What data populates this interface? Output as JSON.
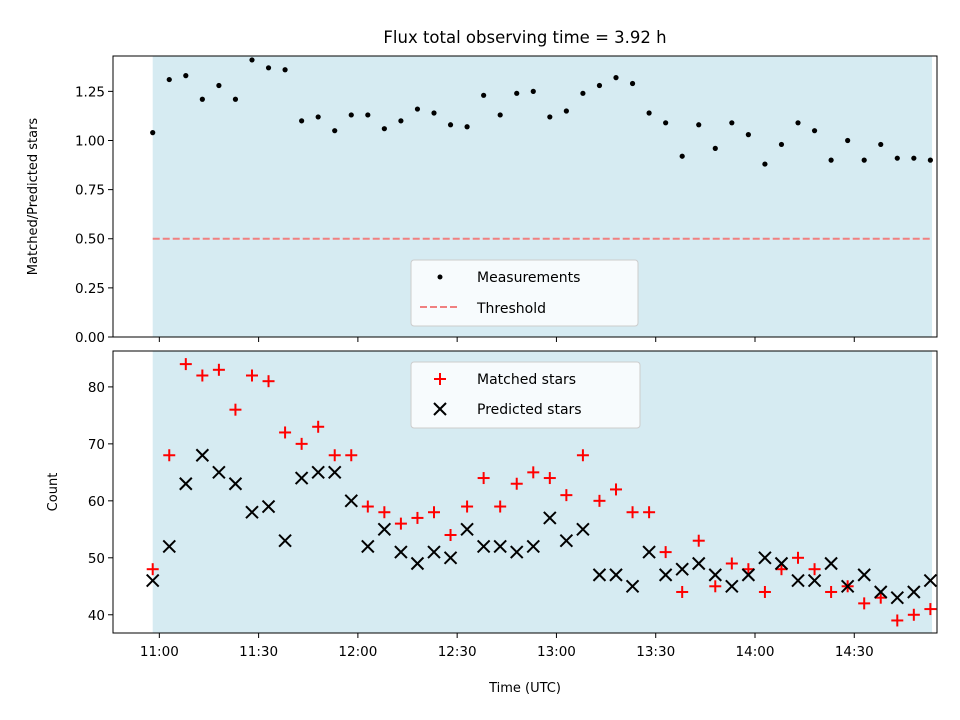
{
  "chart_data": [
    {
      "type": "scatter",
      "title": "Flux total observing time = 3.92 h",
      "xlabel": "",
      "ylabel": "Matched/Predicted stars",
      "xlim_minutes": [
        646,
        895
      ],
      "ylim": [
        0,
        1.43
      ],
      "yticks": [
        0.0,
        0.25,
        0.5,
        0.75,
        1.0,
        1.25
      ],
      "ytick_labels": [
        "0.00",
        "0.25",
        "0.50",
        "0.75",
        "1.00",
        "1.25"
      ],
      "shaded_span_minutes": [
        658,
        893.5
      ],
      "shade_color": "#add8e6",
      "legend": [
        "Measurements",
        "Threshold"
      ],
      "threshold": 0.5,
      "threshold_color": "#f08080",
      "series": [
        {
          "name": "Measurements",
          "marker": "dot",
          "color": "#000000",
          "x": [
            658,
            663,
            668,
            673,
            678,
            683,
            688,
            693,
            698,
            703,
            708,
            713,
            718,
            723,
            728,
            733,
            738,
            743,
            748,
            753,
            758,
            763,
            768,
            773,
            778,
            783,
            788,
            793,
            798,
            803,
            808,
            813,
            818,
            823,
            828,
            833,
            838,
            843,
            848,
            853,
            858,
            863,
            868,
            873,
            878,
            883,
            888,
            893
          ],
          "y": [
            1.04,
            1.31,
            1.33,
            1.21,
            1.28,
            1.21,
            1.41,
            1.37,
            1.36,
            1.1,
            1.12,
            1.05,
            1.13,
            1.13,
            1.06,
            1.1,
            1.16,
            1.14,
            1.08,
            1.07,
            1.23,
            1.13,
            1.24,
            1.25,
            1.12,
            1.15,
            1.24,
            1.28,
            1.32,
            1.29,
            1.14,
            1.09,
            0.92,
            1.08,
            0.96,
            1.09,
            1.03,
            0.88,
            0.98,
            1.09,
            1.05,
            0.9,
            1.0,
            0.9,
            0.98,
            0.91,
            0.91,
            0.9
          ]
        }
      ]
    },
    {
      "type": "scatter",
      "title": "",
      "xlabel": "Time (UTC)",
      "ylabel": "Count",
      "xlim_minutes": [
        646,
        895
      ],
      "ylim": [
        36.8,
        86.3
      ],
      "yticks": [
        40,
        50,
        60,
        70,
        80
      ],
      "ytick_labels": [
        "40",
        "50",
        "60",
        "70",
        "80"
      ],
      "xticks_minutes": [
        660,
        690,
        720,
        750,
        780,
        810,
        840,
        870
      ],
      "xtick_labels": [
        "11:00",
        "11:30",
        "12:00",
        "12:30",
        "13:00",
        "13:30",
        "14:00",
        "14:30"
      ],
      "shaded_span_minutes": [
        658,
        893.5
      ],
      "legend": [
        "Matched stars",
        "Predicted stars"
      ],
      "series": [
        {
          "name": "Matched stars",
          "marker": "plus",
          "color": "#ff0000",
          "x": [
            658,
            663,
            668,
            673,
            678,
            683,
            688,
            693,
            698,
            703,
            708,
            713,
            718,
            723,
            728,
            733,
            738,
            743,
            748,
            753,
            758,
            763,
            768,
            773,
            778,
            783,
            788,
            793,
            798,
            803,
            808,
            813,
            818,
            823,
            828,
            833,
            838,
            843,
            848,
            853,
            858,
            863,
            868,
            873,
            878,
            883,
            888,
            893
          ],
          "y": [
            48,
            68,
            84,
            82,
            83,
            76,
            82,
            81,
            72,
            70,
            73,
            68,
            68,
            59,
            58,
            56,
            57,
            58,
            54,
            59,
            64,
            59,
            63,
            65,
            64,
            61,
            68,
            60,
            62,
            58,
            58,
            51,
            44,
            53,
            45,
            49,
            48,
            44,
            48,
            50,
            48,
            44,
            45,
            42,
            43,
            39,
            40,
            41
          ]
        },
        {
          "name": "Predicted stars",
          "marker": "x",
          "color": "#000000",
          "x": [
            658,
            663,
            668,
            673,
            678,
            683,
            688,
            693,
            698,
            703,
            708,
            713,
            718,
            723,
            728,
            733,
            738,
            743,
            748,
            753,
            758,
            763,
            768,
            773,
            778,
            783,
            788,
            793,
            798,
            803,
            808,
            813,
            818,
            823,
            828,
            833,
            838,
            843,
            848,
            853,
            858,
            863,
            868,
            873,
            878,
            883,
            888,
            893
          ],
          "y": [
            46,
            52,
            63,
            68,
            65,
            63,
            58,
            59,
            53,
            64,
            65,
            65,
            60,
            52,
            55,
            51,
            49,
            51,
            50,
            55,
            52,
            52,
            51,
            52,
            57,
            53,
            55,
            47,
            47,
            45,
            51,
            47,
            48,
            49,
            47,
            45,
            47,
            50,
            49,
            46,
            46,
            49,
            45,
            47,
            44,
            43,
            44,
            46
          ]
        }
      ]
    }
  ]
}
